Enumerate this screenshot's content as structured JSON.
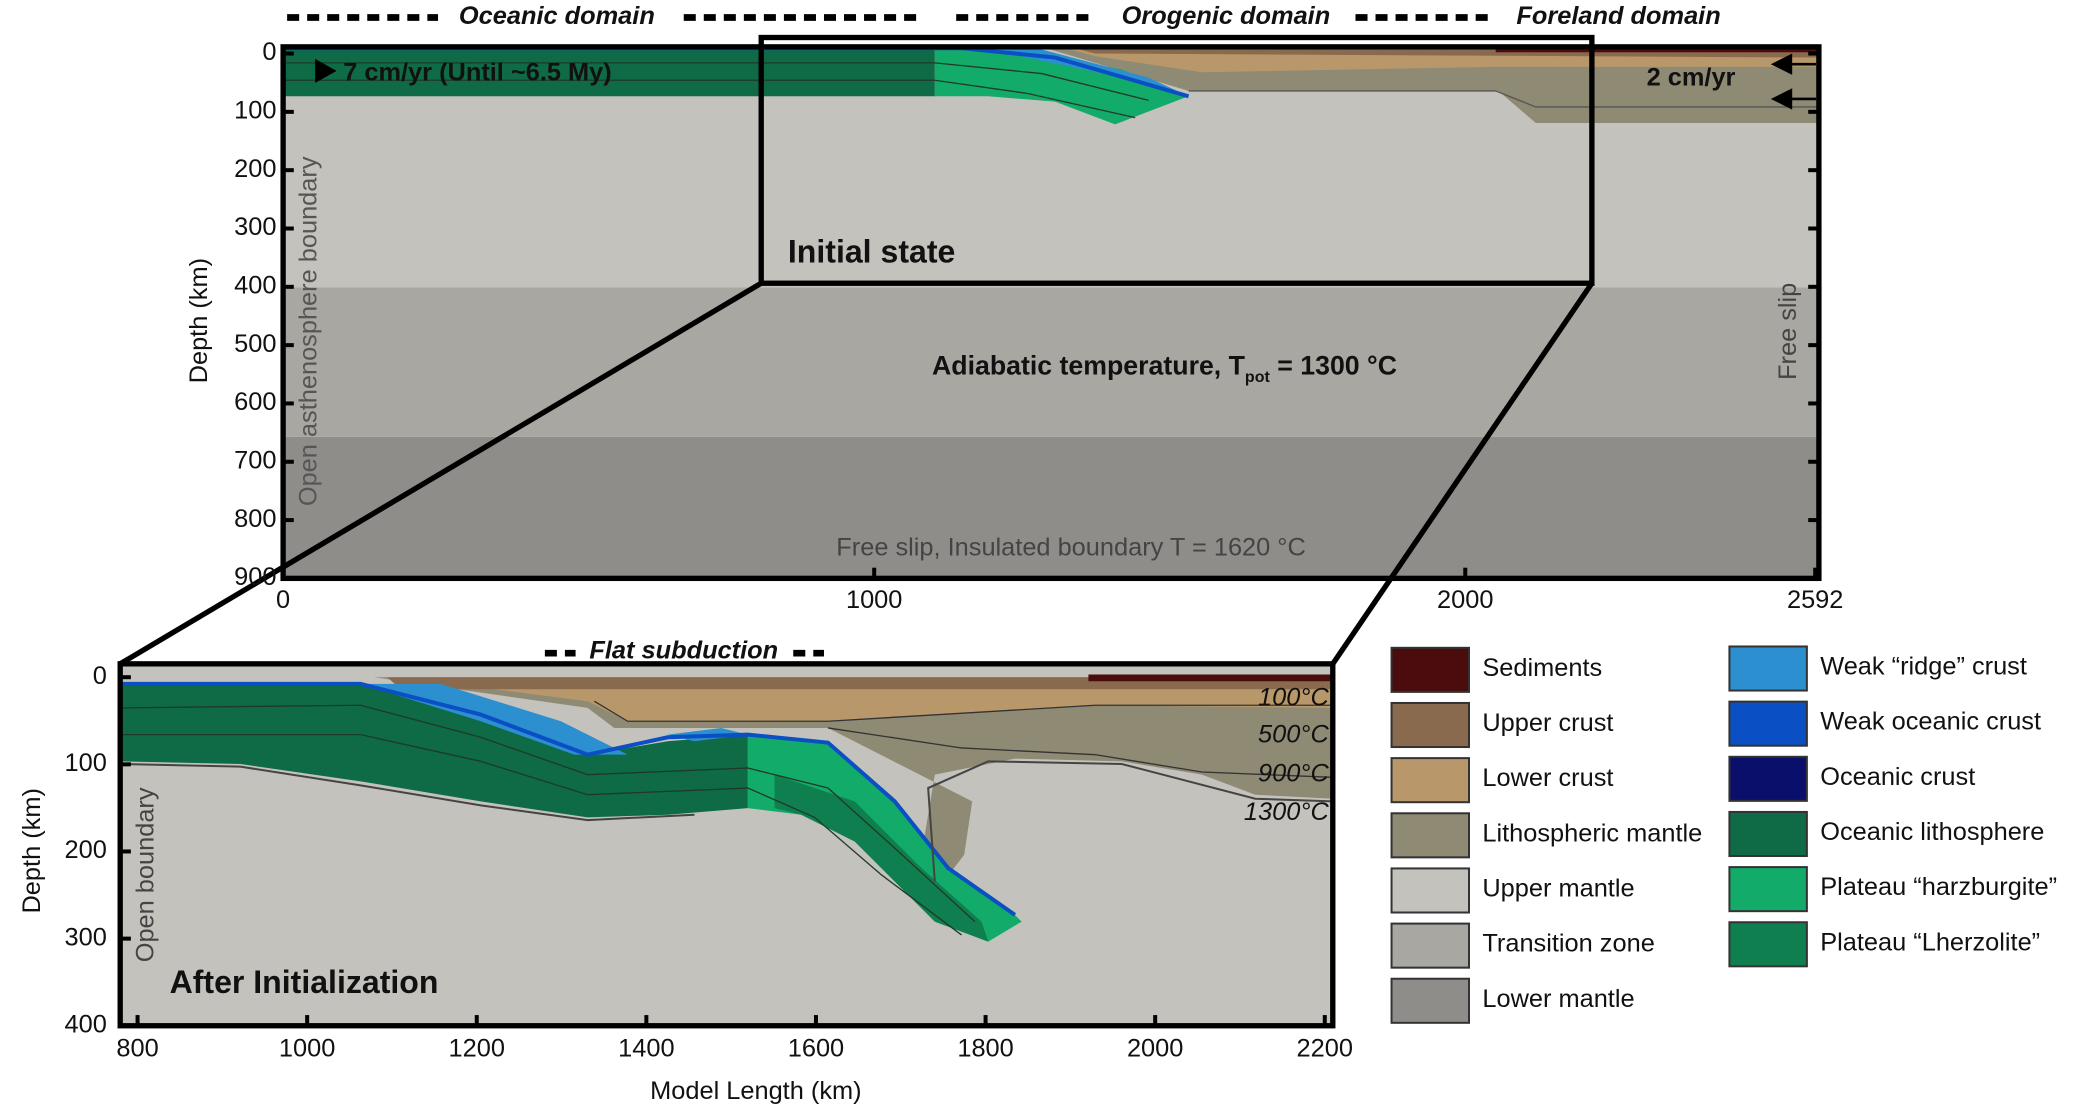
{
  "header": {
    "domains": [
      "Oceanic domain",
      "Orogenic domain",
      "Foreland domain"
    ]
  },
  "top_panel": {
    "y_axis_label": "Depth (km)",
    "y_ticks": [
      0,
      100,
      200,
      300,
      400,
      500,
      600,
      700,
      800,
      900
    ],
    "x_ticks": [
      0,
      1000,
      2000,
      2592
    ],
    "velocity_left": "7 cm/yr (Until ~6.5 My)",
    "velocity_right": "2 cm/yr",
    "left_boundary": "Open asthenosphere boundary",
    "state": "Initial state",
    "temperature": {
      "text": "Adiabatic temperature, T",
      "subscript": "pot",
      "value": " = 1300 °C"
    },
    "right_boundary": "Free slip",
    "bottom_boundary": "Free slip, Insulated boundary  T = 1620 °C"
  },
  "bottom_panel": {
    "title": "Flat subduction",
    "y_axis_label": "Depth (km)",
    "x_axis_label": "Model Length (km)",
    "y_ticks": [
      0,
      100,
      200,
      300,
      400
    ],
    "x_ticks": [
      800,
      1000,
      1200,
      1400,
      1600,
      1800,
      2000,
      2200
    ],
    "isotherms": [
      "100°C",
      "500°C",
      "900°C",
      "1300°C"
    ],
    "left_boundary": "Open boundary",
    "state": "After Initialization"
  },
  "legend": [
    {
      "name": "Sediments",
      "color": "#4a0c0c"
    },
    {
      "name": "Upper crust",
      "color": "#8a6a4e"
    },
    {
      "name": "Lower crust",
      "color": "#b8986a"
    },
    {
      "name": "Lithospheric mantle",
      "color": "#8f8a74"
    },
    {
      "name": "Upper mantle",
      "color": "#c4c2bc"
    },
    {
      "name": "Transition zone",
      "color": "#a9a7a1"
    },
    {
      "name": "Lower mantle",
      "color": "#8e8d89"
    },
    {
      "name": "Weak “ridge” crust",
      "color": "#2c8fd0"
    },
    {
      "name": "Weak oceanic crust",
      "color": "#0a4fc4"
    },
    {
      "name": "Oceanic crust",
      "color": "#0a0f6b"
    },
    {
      "name": "Oceanic lithosphere",
      "color": "#0e6b45"
    },
    {
      "name": "Plateau “harzburgite”",
      "color": "#13ab6a"
    },
    {
      "name": "Plateau “Lherzolite”",
      "color": "#0f7f50"
    }
  ]
}
